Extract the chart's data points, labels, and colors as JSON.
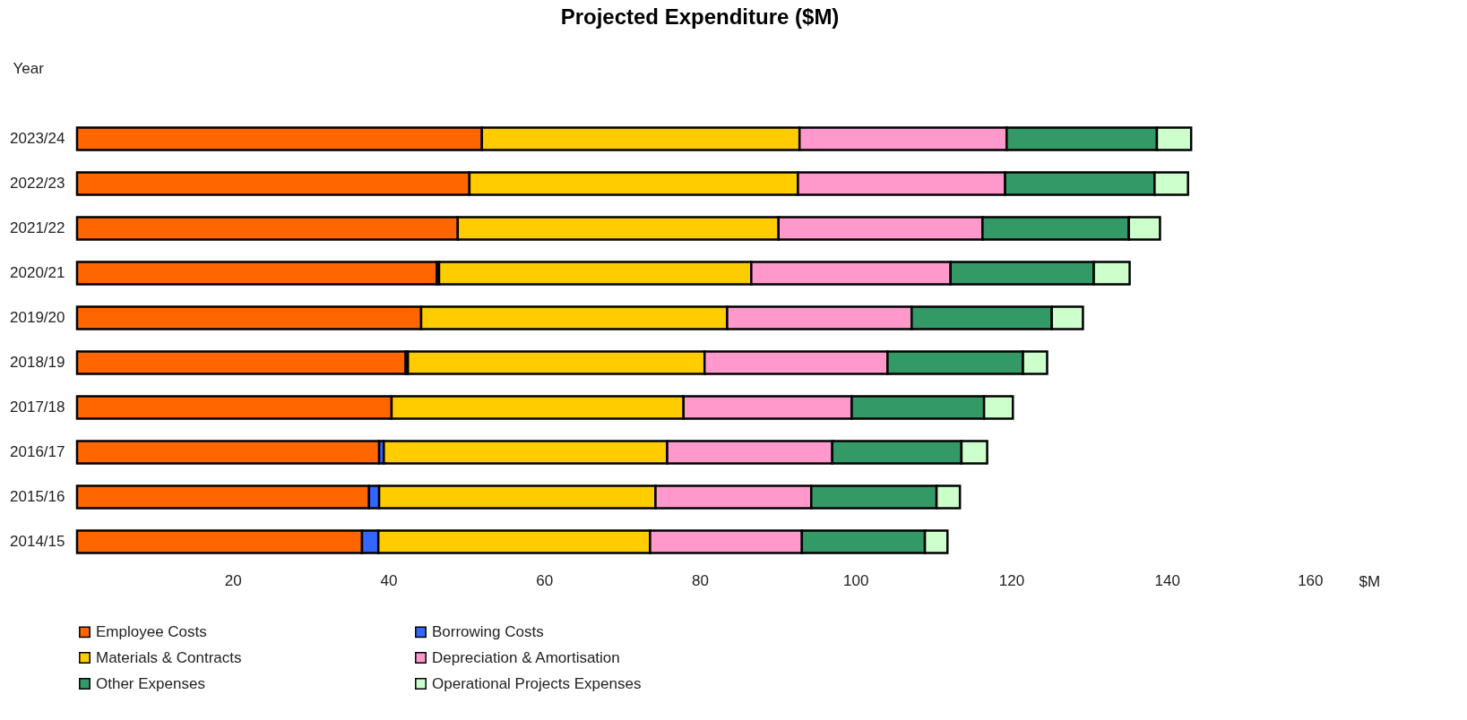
{
  "chart_data": {
    "type": "bar",
    "orientation": "horizontal",
    "stacked": true,
    "title": "Projected Expenditure ($M)",
    "xlabel": "$M",
    "ylabel": "Year",
    "categories": [
      "2023/24",
      "2022/23",
      "2021/22",
      "2020/21",
      "2019/20",
      "2018/19",
      "2017/18",
      "2016/17",
      "2015/16",
      "2014/15"
    ],
    "series": [
      {
        "name": "Employee Costs",
        "color": "#ff6600",
        "values": [
          52.0,
          50.4,
          48.9,
          46.2,
          44.2,
          42.2,
          40.4,
          38.8,
          37.5,
          36.6
        ]
      },
      {
        "name": "Borrowing Costs",
        "color": "#3366ff",
        "values": [
          0,
          0,
          0,
          0.3,
          0,
          0.3,
          null,
          0.6,
          1.3,
          2.1
        ]
      },
      {
        "name": "Materials & Contracts",
        "color": "#ffcc00",
        "values": [
          40.8,
          42.2,
          41.2,
          40.1,
          39.3,
          38.1,
          37.5,
          36.4,
          35.5,
          34.9
        ]
      },
      {
        "name": "Depreciation & Amortisation",
        "color": "#ff99cc",
        "values": [
          26.6,
          26.6,
          26.2,
          25.6,
          23.7,
          23.5,
          21.6,
          21.2,
          20.0,
          19.5
        ]
      },
      {
        "name": "Other Expenses",
        "color": "#339966",
        "values": [
          19.3,
          19.2,
          18.8,
          18.4,
          18.0,
          17.4,
          17.0,
          16.6,
          16.1,
          15.8
        ]
      },
      {
        "name": "Operational Projects Expenses",
        "color": "#ccffcc",
        "values": [
          4.4,
          4.3,
          4.0,
          4.6,
          4.0,
          3.1,
          3.7,
          3.3,
          3.0,
          2.9
        ]
      }
    ],
    "xlim": [
      0,
      160
    ],
    "xticks": [
      20,
      40,
      60,
      80,
      100,
      120,
      140,
      160
    ],
    "grid": false,
    "legend": "bottom"
  }
}
